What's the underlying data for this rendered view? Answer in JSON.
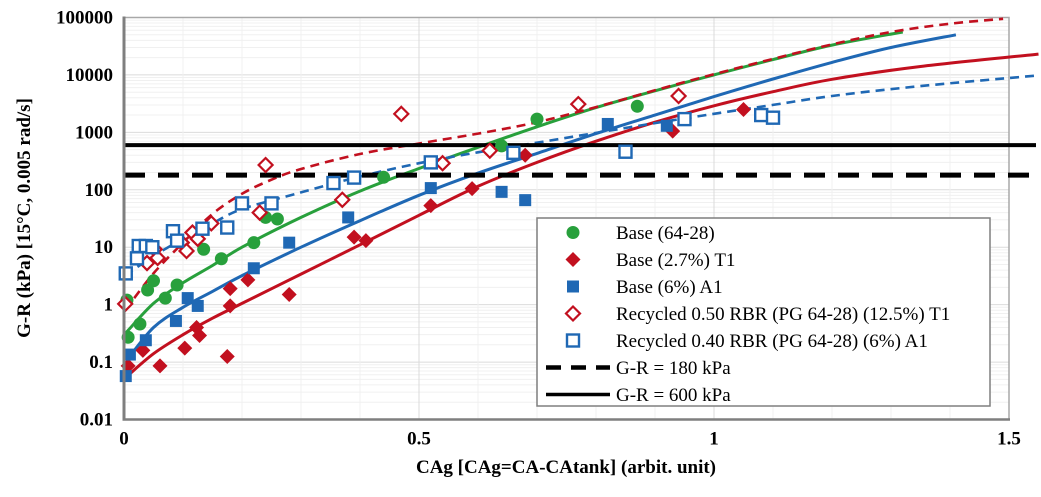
{
  "chart_data": {
    "type": "scatter",
    "title": "",
    "xlabel": "CAg [CAg=CA-CAtank] (arbit. unit)",
    "ylabel": "G-R (kPa) [15°C, 0.005 rad/s]",
    "grid": true,
    "legend_position": "inside-right",
    "x_axis": {
      "min": 0,
      "max": 1.5,
      "scale": "linear",
      "ticks": [
        0,
        0.5,
        1,
        1.5
      ],
      "tick_labels": [
        "0",
        "0.5",
        "1",
        "1.5"
      ],
      "minor_step": 0.1
    },
    "y_axis": {
      "min": 0.01,
      "max": 100000,
      "scale": "log",
      "ticks": [
        0.01,
        0.1,
        1,
        10,
        100,
        1000,
        10000,
        100000
      ],
      "tick_labels": [
        "0.01",
        "0.1",
        "1",
        "10",
        "100",
        "1000",
        "10000",
        "100000"
      ]
    },
    "series": [
      {
        "name": "Base (64-28)",
        "marker": "circle",
        "fill": "filled",
        "color": "#28A03C",
        "points": [
          [
            0.005,
            1.2
          ],
          [
            0.007,
            0.27
          ],
          [
            0.027,
            0.46
          ],
          [
            0.04,
            1.8
          ],
          [
            0.05,
            2.6
          ],
          [
            0.07,
            1.3
          ],
          [
            0.09,
            2.2
          ],
          [
            0.135,
            9.2
          ],
          [
            0.165,
            6.3
          ],
          [
            0.22,
            12
          ],
          [
            0.24,
            33
          ],
          [
            0.26,
            31
          ],
          [
            0.44,
            165
          ],
          [
            0.64,
            580
          ],
          [
            0.7,
            1700
          ],
          [
            0.87,
            2850
          ]
        ]
      },
      {
        "name": "Base (2.7%) T1",
        "marker": "diamond",
        "fill": "filled",
        "color": "#C2101F",
        "points": [
          [
            0.007,
            0.086
          ],
          [
            0.032,
            0.16
          ],
          [
            0.061,
            0.086
          ],
          [
            0.103,
            0.175
          ],
          [
            0.123,
            0.4
          ],
          [
            0.128,
            0.29
          ],
          [
            0.175,
            0.125
          ],
          [
            0.18,
            1.9
          ],
          [
            0.18,
            0.95
          ],
          [
            0.21,
            2.7
          ],
          [
            0.28,
            1.5
          ],
          [
            0.39,
            15
          ],
          [
            0.41,
            13
          ],
          [
            0.52,
            53
          ],
          [
            0.59,
            105
          ],
          [
            0.68,
            400
          ],
          [
            0.93,
            1050
          ],
          [
            1.05,
            2500
          ]
        ]
      },
      {
        "name": "Base (6%) A1",
        "marker": "square",
        "fill": "filled",
        "color": "#1F68B4",
        "points": [
          [
            0.003,
            0.057
          ],
          [
            0.01,
            0.135
          ],
          [
            0.037,
            0.24
          ],
          [
            0.088,
            0.52
          ],
          [
            0.108,
            1.3
          ],
          [
            0.125,
            0.95
          ],
          [
            0.22,
            4.3
          ],
          [
            0.28,
            12
          ],
          [
            0.38,
            33
          ],
          [
            0.52,
            107
          ],
          [
            0.64,
            92
          ],
          [
            0.68,
            66
          ],
          [
            0.82,
            1400
          ],
          [
            0.92,
            1300
          ]
        ]
      },
      {
        "name": "Recycled 0.50 RBR (PG 64-28) (12.5%) T1",
        "marker": "diamond",
        "fill": "open",
        "color": "#C2101F",
        "points": [
          [
            0.002,
            1.03
          ],
          [
            0.039,
            5.3
          ],
          [
            0.052,
            9.2
          ],
          [
            0.057,
            6.5
          ],
          [
            0.098,
            12
          ],
          [
            0.106,
            8.6
          ],
          [
            0.116,
            18
          ],
          [
            0.125,
            14
          ],
          [
            0.148,
            26
          ],
          [
            0.23,
            40
          ],
          [
            0.24,
            270
          ],
          [
            0.37,
            67
          ],
          [
            0.47,
            2100
          ],
          [
            0.54,
            290
          ],
          [
            0.62,
            480
          ],
          [
            0.77,
            3100
          ],
          [
            0.94,
            4300
          ]
        ]
      },
      {
        "name": "Recycled 0.40 RBR (PG 64-28) (6%) A1",
        "marker": "square",
        "fill": "open",
        "color": "#1F68B4",
        "points": [
          [
            0.003,
            3.5
          ],
          [
            0.022,
            6.4
          ],
          [
            0.025,
            10.5
          ],
          [
            0.037,
            10.5
          ],
          [
            0.048,
            10
          ],
          [
            0.083,
            19
          ],
          [
            0.09,
            13
          ],
          [
            0.133,
            21
          ],
          [
            0.175,
            22
          ],
          [
            0.2,
            58
          ],
          [
            0.25,
            58
          ],
          [
            0.355,
            131
          ],
          [
            0.39,
            163
          ],
          [
            0.52,
            300
          ],
          [
            0.66,
            440
          ],
          [
            0.85,
            460
          ],
          [
            0.95,
            1700
          ],
          [
            1.08,
            2000
          ],
          [
            1.1,
            1800
          ]
        ]
      }
    ],
    "trend_lines": [
      {
        "series": "Base (64-28)",
        "style": "solid",
        "color": "#28A03C",
        "anchors": [
          [
            0.004,
            0.33
          ],
          [
            0.05,
            1.05
          ],
          [
            0.1,
            2.4
          ],
          [
            0.15,
            4.8
          ],
          [
            0.2,
            10
          ],
          [
            0.3,
            33
          ],
          [
            0.4,
            95
          ],
          [
            0.5,
            235
          ],
          [
            0.6,
            550
          ],
          [
            0.7,
            1250
          ],
          [
            0.8,
            2700
          ],
          [
            0.9,
            5300
          ],
          [
            1.0,
            10000
          ],
          [
            1.1,
            18500
          ],
          [
            1.2,
            33000
          ],
          [
            1.32,
            56000
          ]
        ]
      },
      {
        "series": "Base (6%) A1",
        "style": "solid",
        "color": "#1F68B4",
        "anchors": [
          [
            0.004,
            0.105
          ],
          [
            0.05,
            0.4
          ],
          [
            0.1,
            0.9
          ],
          [
            0.15,
            1.7
          ],
          [
            0.2,
            3.2
          ],
          [
            0.3,
            10
          ],
          [
            0.4,
            29
          ],
          [
            0.5,
            80
          ],
          [
            0.6,
            195
          ],
          [
            0.7,
            430
          ],
          [
            0.8,
            950
          ],
          [
            0.9,
            2000
          ],
          [
            1.0,
            4200
          ],
          [
            1.1,
            8500
          ],
          [
            1.2,
            16500
          ],
          [
            1.3,
            30000
          ],
          [
            1.41,
            50000
          ]
        ]
      },
      {
        "series": "Base (2.7%) T1",
        "style": "solid",
        "color": "#C2101F",
        "anchors": [
          [
            0.008,
            0.06
          ],
          [
            0.05,
            0.14
          ],
          [
            0.1,
            0.3
          ],
          [
            0.15,
            0.58
          ],
          [
            0.2,
            1.05
          ],
          [
            0.3,
            3.4
          ],
          [
            0.4,
            11
          ],
          [
            0.5,
            36
          ],
          [
            0.6,
            115
          ],
          [
            0.7,
            300
          ],
          [
            0.8,
            700
          ],
          [
            0.9,
            1500
          ],
          [
            1.0,
            2900
          ],
          [
            1.1,
            5100
          ],
          [
            1.2,
            8400
          ],
          [
            1.35,
            14000
          ],
          [
            1.55,
            23000
          ]
        ]
      },
      {
        "series": "Recycled 0.50 RBR (PG 64-28) (12.5%) T1",
        "style": "dashed",
        "color": "#C2101F",
        "anchors": [
          [
            0.002,
            0.8
          ],
          [
            0.05,
            3.5
          ],
          [
            0.1,
            12
          ],
          [
            0.15,
            38
          ],
          [
            0.2,
            85
          ],
          [
            0.25,
            150
          ],
          [
            0.3,
            230
          ],
          [
            0.4,
            420
          ],
          [
            0.5,
            640
          ],
          [
            0.6,
            950
          ],
          [
            0.7,
            1500
          ],
          [
            0.8,
            2750
          ],
          [
            0.9,
            5400
          ],
          [
            1.0,
            10300
          ],
          [
            1.1,
            19000
          ],
          [
            1.2,
            34000
          ],
          [
            1.3,
            56000
          ],
          [
            1.4,
            78000
          ],
          [
            1.49,
            95000
          ]
        ]
      },
      {
        "series": "Recycled 0.40 RBR (PG 64-28) (6%) A1",
        "style": "dashed",
        "color": "#1F68B4",
        "anchors": [
          [
            0.002,
            3.2
          ],
          [
            0.05,
            7
          ],
          [
            0.1,
            14
          ],
          [
            0.15,
            26
          ],
          [
            0.2,
            46
          ],
          [
            0.3,
            90
          ],
          [
            0.4,
            170
          ],
          [
            0.5,
            290
          ],
          [
            0.6,
            450
          ],
          [
            0.7,
            660
          ],
          [
            0.8,
            980
          ],
          [
            0.9,
            1450
          ],
          [
            1.0,
            2100
          ],
          [
            1.1,
            3000
          ],
          [
            1.2,
            4300
          ],
          [
            1.35,
            6400
          ],
          [
            1.55,
            9800
          ]
        ]
      }
    ],
    "reference_lines": [
      {
        "label": "G-R = 180 kPa",
        "value": 180,
        "style": "dashed",
        "color": "#000000"
      },
      {
        "label": "G-R = 600 kPa",
        "value": 600,
        "style": "solid",
        "color": "#000000"
      }
    ],
    "colors": {
      "green": "#28A03C",
      "red": "#C2101F",
      "blue": "#1F68B4",
      "grid_minor": "#F0F0F0",
      "grid_major": "#DBDBDB",
      "frame": "#A8A8A8",
      "axis": "#7F7F7F",
      "legend_border": "#7F7F7F"
    }
  }
}
